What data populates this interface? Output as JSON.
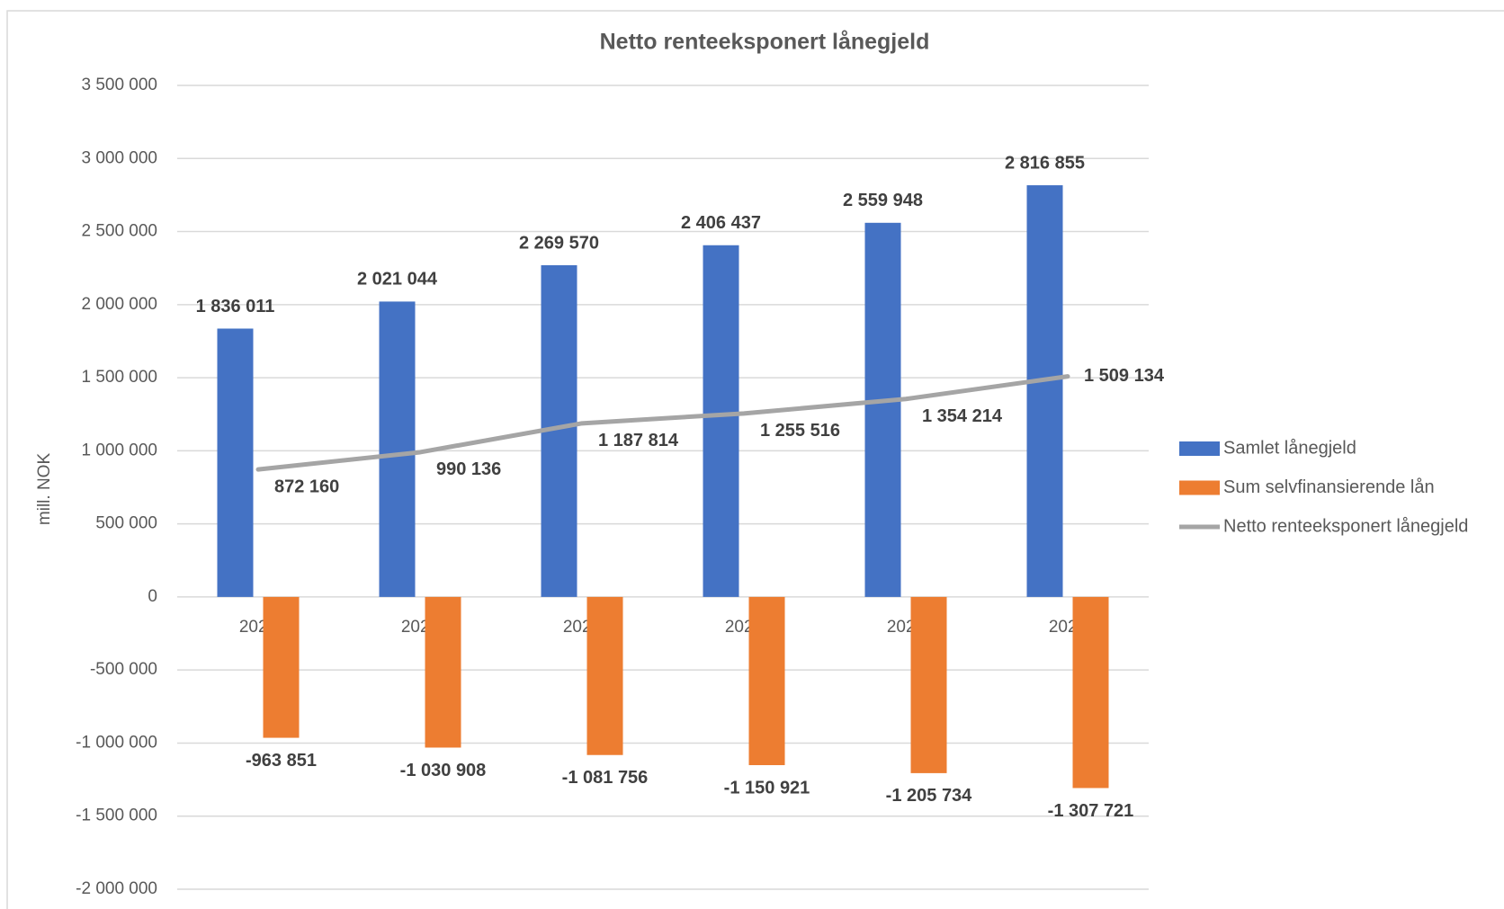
{
  "chart_data": {
    "type": "bar",
    "title": "Netto renteeksponert lånegjeld",
    "y_label": "mill. NOK",
    "categories": [
      "2020",
      "2021",
      "2022",
      "2023",
      "2024",
      "2025"
    ],
    "series": [
      {
        "name": "Samlet lånegjeld",
        "color": "#4472c4",
        "type": "bar",
        "values": [
          1836011,
          2021044,
          2269570,
          2406437,
          2559948,
          2816855
        ],
        "value_labels": [
          "1 836 011",
          "2 021 044",
          "2 269 570",
          "2 406 437",
          "2 559 948",
          "2 816 855"
        ]
      },
      {
        "name": "Sum selvfinansierende lån",
        "color": "#ed7d31",
        "type": "bar",
        "values": [
          -963851,
          -1030908,
          -1081756,
          -1150921,
          -1205734,
          -1307721
        ],
        "value_labels": [
          "-963 851",
          "-1 030 908",
          "-1 081 756",
          "-1 150 921",
          "-1 205 734",
          "-1 307 721"
        ]
      },
      {
        "name": "Netto renteeksponert lånegjeld",
        "color": "#a5a5a5",
        "type": "line",
        "values": [
          872160,
          990136,
          1187814,
          1255516,
          1354214,
          1509134
        ],
        "value_labels": [
          "872 160",
          "990 136",
          "1 187 814",
          "1 255 516",
          "1 354 214",
          "1 509 134"
        ]
      }
    ],
    "ylim": [
      -2000000,
      3500000
    ],
    "yticks": [
      {
        "value": -2000000,
        "label": "-2 000 000"
      },
      {
        "value": -1500000,
        "label": "-1 500 000"
      },
      {
        "value": -1000000,
        "label": "-1 000 000"
      },
      {
        "value": -500000,
        "label": "-500 000"
      },
      0,
      {
        "value": 500000,
        "label": "500 000"
      },
      {
        "value": 1000000,
        "label": "1 000 000"
      },
      {
        "value": 1500000,
        "label": "1 500 000"
      },
      {
        "value": 2000000,
        "label": "2 000 000"
      },
      {
        "value": 2500000,
        "label": "2 500 000"
      },
      {
        "value": 3000000,
        "label": "3 000 000"
      },
      {
        "value": 3500000,
        "label": "3 500 000"
      }
    ],
    "grid": true,
    "legend": "right"
  }
}
